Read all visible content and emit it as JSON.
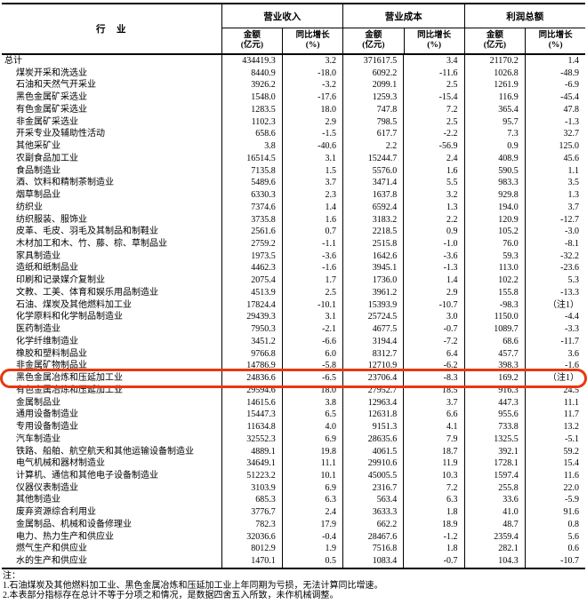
{
  "header": {
    "industry_label": "行　业",
    "groups": [
      {
        "label": "营业收入"
      },
      {
        "label": "营业成本"
      },
      {
        "label": "利润总额"
      }
    ],
    "amount_label": "金额",
    "amount_unit": "(亿元)",
    "growth_label": "同比增长",
    "growth_unit": "(%)"
  },
  "rows": [
    {
      "name": "总计",
      "indent": false,
      "highlight": false,
      "values": [
        "434419.3",
        "3.2",
        "371617.5",
        "3.4",
        "21170.2",
        "1.4"
      ]
    },
    {
      "name": "煤炭开采和洗选业",
      "indent": true,
      "highlight": false,
      "values": [
        "8440.9",
        "-18.0",
        "6092.2",
        "-11.6",
        "1026.8",
        "-48.9"
      ]
    },
    {
      "name": "石油和天然气开采业",
      "indent": true,
      "highlight": false,
      "values": [
        "3926.2",
        "-3.2",
        "2099.1",
        "2.5",
        "1261.9",
        "-6.9"
      ]
    },
    {
      "name": "黑色金属矿采选业",
      "indent": true,
      "highlight": false,
      "values": [
        "1548.0",
        "-17.6",
        "1259.3",
        "-15.4",
        "116.9",
        "-45.4"
      ]
    },
    {
      "name": "有色金属矿采选业",
      "indent": true,
      "highlight": false,
      "values": [
        "1283.5",
        "18.0",
        "747.8",
        "7.2",
        "365.4",
        "47.8"
      ]
    },
    {
      "name": "非金属矿采选业",
      "indent": true,
      "highlight": false,
      "values": [
        "1102.3",
        "2.9",
        "798.5",
        "2.5",
        "95.7",
        "-1.3"
      ]
    },
    {
      "name": "开采专业及辅助性活动",
      "indent": true,
      "highlight": false,
      "values": [
        "658.6",
        "-1.5",
        "617.7",
        "-2.2",
        "7.3",
        "32.7"
      ]
    },
    {
      "name": "其他采矿业",
      "indent": true,
      "highlight": false,
      "values": [
        "3.8",
        "-40.6",
        "2.2",
        "-56.9",
        "0.9",
        "125.0"
      ]
    },
    {
      "name": "农副食品加工业",
      "indent": true,
      "highlight": false,
      "values": [
        "16514.5",
        "3.1",
        "15244.7",
        "2.4",
        "408.9",
        "45.6"
      ]
    },
    {
      "name": "食品制造业",
      "indent": true,
      "highlight": false,
      "values": [
        "7135.8",
        "1.5",
        "5576.0",
        "1.6",
        "590.5",
        "1.1"
      ]
    },
    {
      "name": "酒、饮料和精制茶制造业",
      "indent": true,
      "highlight": false,
      "values": [
        "5489.6",
        "3.7",
        "3471.4",
        "5.5",
        "983.3",
        "3.5"
      ]
    },
    {
      "name": "烟草制品业",
      "indent": true,
      "highlight": false,
      "values": [
        "6330.3",
        "2.3",
        "1637.8",
        "3.2",
        "929.8",
        "1.3"
      ]
    },
    {
      "name": "纺织业",
      "indent": true,
      "highlight": false,
      "values": [
        "7374.6",
        "1.4",
        "6592.4",
        "1.3",
        "194.0",
        "3.7"
      ]
    },
    {
      "name": "纺织服装、服饰业",
      "indent": true,
      "highlight": false,
      "values": [
        "3735.8",
        "1.6",
        "3183.2",
        "2.2",
        "120.9",
        "-12.7"
      ]
    },
    {
      "name": "皮革、毛皮、羽毛及其制品和制鞋业",
      "indent": true,
      "highlight": false,
      "values": [
        "2561.6",
        "0.7",
        "2218.5",
        "0.9",
        "105.2",
        "-3.0"
      ]
    },
    {
      "name": "木材加工和木、竹、藤、棕、草制品业",
      "indent": true,
      "highlight": false,
      "values": [
        "2759.2",
        "-1.1",
        "2515.8",
        "-1.0",
        "76.0",
        "-8.1"
      ]
    },
    {
      "name": "家具制造业",
      "indent": true,
      "highlight": false,
      "values": [
        "1973.5",
        "-3.6",
        "1642.6",
        "-3.6",
        "59.3",
        "-32.2"
      ]
    },
    {
      "name": "造纸和纸制品业",
      "indent": true,
      "highlight": false,
      "values": [
        "4462.3",
        "-1.6",
        "3945.1",
        "-1.3",
        "113.0",
        "-23.6"
      ]
    },
    {
      "name": "印刷和记录媒介复制业",
      "indent": true,
      "highlight": false,
      "values": [
        "2075.4",
        "1.7",
        "1736.0",
        "1.4",
        "102.2",
        "5.3"
      ]
    },
    {
      "name": "文教、工美、体育和娱乐用品制造业",
      "indent": true,
      "highlight": false,
      "values": [
        "4513.9",
        "2.5",
        "3961.2",
        "2.9",
        "155.8",
        "-13.3"
      ]
    },
    {
      "name": "石油、煤炭及其他燃料加工业",
      "indent": true,
      "highlight": false,
      "values": [
        "17824.4",
        "-10.1",
        "15393.9",
        "-10.7",
        "-98.3",
        "（注1）"
      ]
    },
    {
      "name": "化学原料和化学制品制造业",
      "indent": true,
      "highlight": false,
      "values": [
        "29439.3",
        "3.1",
        "25724.5",
        "3.0",
        "1150.0",
        "-4.4"
      ]
    },
    {
      "name": "医药制造业",
      "indent": true,
      "highlight": false,
      "values": [
        "7950.3",
        "-2.1",
        "4677.5",
        "-0.7",
        "1089.7",
        "-3.3"
      ]
    },
    {
      "name": "化学纤维制造业",
      "indent": true,
      "highlight": false,
      "values": [
        "3451.2",
        "-6.6",
        "3194.4",
        "-7.2",
        "68.6",
        "-11.7"
      ]
    },
    {
      "name": "橡胶和塑料制品业",
      "indent": true,
      "highlight": false,
      "values": [
        "9766.8",
        "6.0",
        "8312.7",
        "6.4",
        "457.7",
        "3.6"
      ]
    },
    {
      "name": "非金属矿物制品业",
      "indent": true,
      "highlight": false,
      "values": [
        "14786.9",
        "-5.8",
        "12710.9",
        "-6.2",
        "398.3",
        "-1.6"
      ]
    },
    {
      "name": "黑色金属冶炼和压延加工业",
      "indent": true,
      "highlight": true,
      "values": [
        "24836.6",
        "-6.5",
        "23706.4",
        "-8.3",
        "169.2",
        "（注1）"
      ]
    },
    {
      "name": "有色金属冶炼和压延加工业",
      "indent": true,
      "highlight": false,
      "values": [
        "29594.6",
        "18.0",
        "27952.7",
        "18.5",
        "916.3",
        "24.5"
      ]
    },
    {
      "name": "金属制品业",
      "indent": true,
      "highlight": false,
      "values": [
        "14615.6",
        "3.8",
        "12963.4",
        "3.7",
        "447.3",
        "11.1"
      ]
    },
    {
      "name": "通用设备制造业",
      "indent": true,
      "highlight": false,
      "values": [
        "15447.3",
        "6.5",
        "12631.8",
        "6.6",
        "955.6",
        "11.7"
      ]
    },
    {
      "name": "专用设备制造业",
      "indent": true,
      "highlight": false,
      "values": [
        "11634.8",
        "4.0",
        "9151.3",
        "4.1",
        "733.8",
        "13.2"
      ]
    },
    {
      "name": "汽车制造业",
      "indent": true,
      "highlight": false,
      "values": [
        "32552.3",
        "6.9",
        "28635.6",
        "7.9",
        "1325.5",
        "-5.1"
      ]
    },
    {
      "name": "铁路、船舶、航空航天和其他运输设备制造业",
      "indent": true,
      "highlight": false,
      "values": [
        "4889.1",
        "19.8",
        "4061.5",
        "18.7",
        "392.1",
        "59.2"
      ]
    },
    {
      "name": "电气机械和器材制造业",
      "indent": true,
      "highlight": false,
      "values": [
        "34649.1",
        "11.1",
        "29910.6",
        "11.9",
        "1728.1",
        "15.4"
      ]
    },
    {
      "name": "计算机、通信和其他电子设备制造业",
      "indent": true,
      "highlight": false,
      "values": [
        "51223.2",
        "10.1",
        "45005.5",
        "10.3",
        "1597.4",
        "11.6"
      ]
    },
    {
      "name": "仪器仪表制造业",
      "indent": true,
      "highlight": false,
      "values": [
        "3103.9",
        "6.9",
        "2316.7",
        "7.2",
        "255.8",
        "22.0"
      ]
    },
    {
      "name": "其他制造业",
      "indent": true,
      "highlight": false,
      "values": [
        "685.3",
        "6.3",
        "563.4",
        "6.3",
        "33.6",
        "-5.9"
      ]
    },
    {
      "name": "废弃资源综合利用业",
      "indent": true,
      "highlight": false,
      "values": [
        "3776.7",
        "2.4",
        "3633.3",
        "1.8",
        "41.0",
        "91.6"
      ]
    },
    {
      "name": "金属制品、机械和设备修理业",
      "indent": true,
      "highlight": false,
      "values": [
        "782.3",
        "17.9",
        "662.2",
        "18.9",
        "48.7",
        "0.8"
      ]
    },
    {
      "name": "电力、热力生产和供应业",
      "indent": true,
      "highlight": false,
      "values": [
        "32036.6",
        "-0.4",
        "28467.6",
        "-1.2",
        "2359.4",
        "5.6"
      ]
    },
    {
      "name": "燃气生产和供应业",
      "indent": true,
      "highlight": false,
      "values": [
        "8012.9",
        "1.9",
        "7516.8",
        "1.8",
        "282.1",
        "0.6"
      ]
    },
    {
      "name": "水的生产和供应业",
      "indent": true,
      "highlight": false,
      "values": [
        "1470.1",
        "0.5",
        "1083.4",
        "-0.7",
        "104.3",
        "-10.7"
      ]
    }
  ],
  "notes": {
    "title": "注：",
    "items": [
      "1.石油煤炭及其他燃料加工业、黑色金属冶炼和压延加工业上年同期为亏损，无法计算同比增速。",
      "2.本表部分指标存在总计不等于分项之和情况，是数据四舍五入所致，未作机械调整。"
    ]
  },
  "colors": {
    "highlight_border": "#e8380d",
    "text": "#000000",
    "background": "#ffffff"
  }
}
